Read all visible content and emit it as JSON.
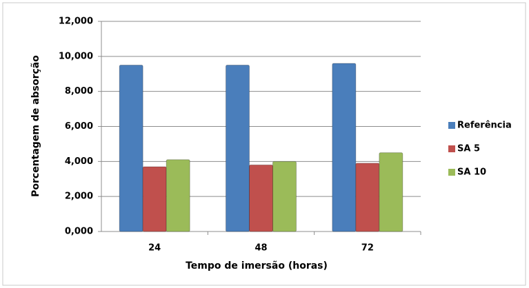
{
  "chart_data": {
    "type": "bar",
    "x_label": "Tempo de imersão (horas)",
    "y_label": "Porcentagem de absorção",
    "categories": [
      "24",
      "48",
      "72"
    ],
    "series": [
      {
        "name": "Referência",
        "color": "#4a7ebb",
        "values": [
          9.5,
          9.5,
          9.6
        ]
      },
      {
        "name": "SA 5",
        "color": "#c0504d",
        "values": [
          3.7,
          3.8,
          3.9
        ]
      },
      {
        "name": "SA 10",
        "color": "#9bbb59",
        "values": [
          4.1,
          4.0,
          4.5
        ]
      }
    ],
    "ylim": [
      0,
      12
    ],
    "yticks": [
      {
        "value": 0,
        "label": "0,000"
      },
      {
        "value": 2,
        "label": "2,000"
      },
      {
        "value": 4,
        "label": "4,000"
      },
      {
        "value": 6,
        "label": "6,000"
      },
      {
        "value": 8,
        "label": "8,000"
      },
      {
        "value": 10,
        "label": "10,000"
      },
      {
        "value": 12,
        "label": "12,000"
      }
    ],
    "grid": true,
    "legend_position": "right"
  }
}
